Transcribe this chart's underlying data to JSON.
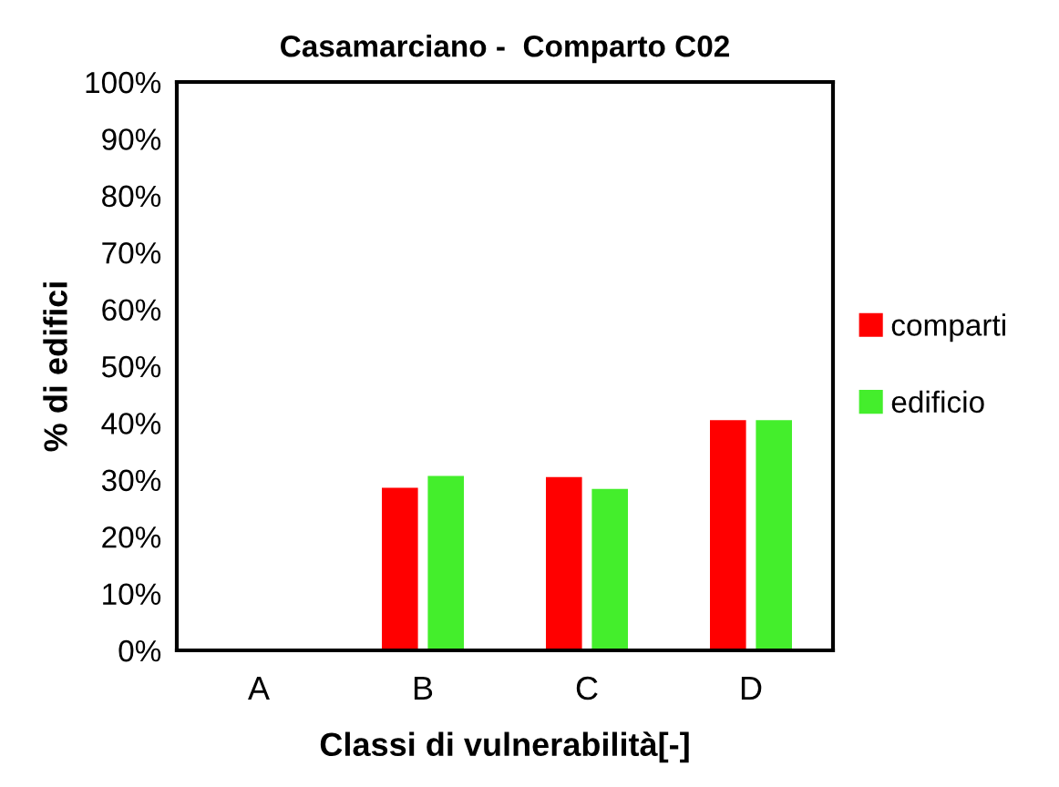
{
  "chart_data": {
    "type": "bar",
    "title": "Casamarciano -  Comparto C02",
    "xlabel": "Classi di vulnerabilità[-]",
    "ylabel": "% di edifici",
    "categories": [
      "A",
      "B",
      "C",
      "D"
    ],
    "series": [
      {
        "name": "comparti",
        "color": "#ff0000",
        "values": [
          0,
          28.6,
          30.5,
          40.5
        ]
      },
      {
        "name": "edificio",
        "color": "#44ee2c",
        "values": [
          0,
          30.7,
          28.4,
          40.5
        ]
      }
    ],
    "ylim": [
      0,
      100
    ],
    "yticks": [
      {
        "value": 0,
        "label": "0%"
      },
      {
        "value": 10,
        "label": "10%"
      },
      {
        "value": 20,
        "label": "20%"
      },
      {
        "value": 30,
        "label": "30%"
      },
      {
        "value": 40,
        "label": "40%"
      },
      {
        "value": 50,
        "label": "50%"
      },
      {
        "value": 60,
        "label": "60%"
      },
      {
        "value": 70,
        "label": "70%"
      },
      {
        "value": 80,
        "label": "80%"
      },
      {
        "value": 90,
        "label": "90%"
      },
      {
        "value": 100,
        "label": "100%"
      }
    ],
    "grid": false,
    "legend": "right"
  }
}
